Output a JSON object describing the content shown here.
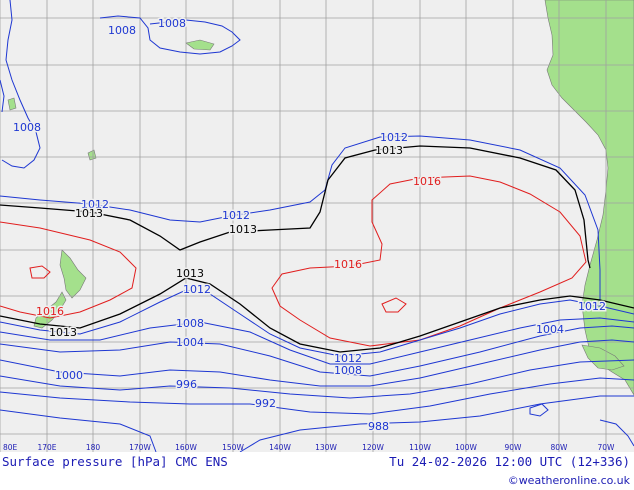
{
  "map": {
    "colors": {
      "ocean": "#efefef",
      "land": "#a4e08c",
      "grid": "#a0a0a0",
      "coast": "#777777",
      "isobar_low": "#1e37d2",
      "isobar_1013": "#000000",
      "isobar_high": "#e11e1e"
    },
    "longitude_labels": [
      "80E",
      "170E",
      "180",
      "170W",
      "160W",
      "150W",
      "140W",
      "130W",
      "120W",
      "110W",
      "100W",
      "90W",
      "80W",
      "70W"
    ],
    "isobar_labels": [
      {
        "text": "1008",
        "color": "blue"
      },
      {
        "text": "1008",
        "color": "blue"
      },
      {
        "text": "1008",
        "color": "blue"
      },
      {
        "text": "1012",
        "color": "blue"
      },
      {
        "text": "1013",
        "color": "black"
      },
      {
        "text": "1016",
        "color": "red"
      },
      {
        "text": "1012",
        "color": "blue"
      },
      {
        "text": "1013",
        "color": "black"
      },
      {
        "text": "1012",
        "color": "blue"
      },
      {
        "text": "1013",
        "color": "black"
      },
      {
        "text": "1016",
        "color": "red"
      },
      {
        "text": "1013",
        "color": "black"
      },
      {
        "text": "1012",
        "color": "blue"
      },
      {
        "text": "1016",
        "color": "red"
      },
      {
        "text": "1013",
        "color": "black"
      },
      {
        "text": "1012",
        "color": "blue"
      },
      {
        "text": "1012",
        "color": "blue"
      },
      {
        "text": "1008",
        "color": "blue"
      },
      {
        "text": "1008",
        "color": "blue"
      },
      {
        "text": "1004",
        "color": "blue"
      },
      {
        "text": "1004",
        "color": "blue"
      },
      {
        "text": "1000",
        "color": "blue"
      },
      {
        "text": "996",
        "color": "blue"
      },
      {
        "text": "992",
        "color": "blue"
      },
      {
        "text": "988",
        "color": "blue"
      }
    ]
  },
  "footer": {
    "product": "Surface pressure [hPa] CMC ENS",
    "valid_time": "Tu 24-02-2026 12:00 UTC (12+336)",
    "credit": "©weatheronline.co.uk"
  }
}
